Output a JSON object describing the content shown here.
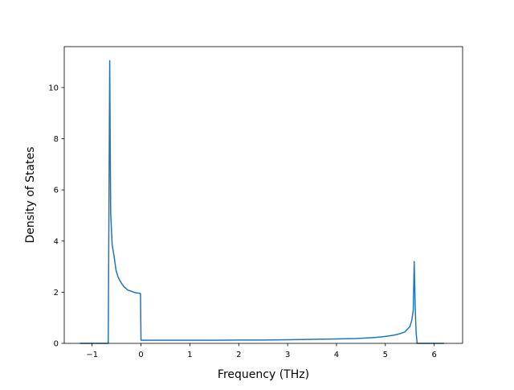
{
  "chart_data": {
    "type": "line",
    "title": "",
    "xlabel": "Frequency (THz)",
    "ylabel": "Density of States",
    "xlim": [
      -1.57,
      6.58
    ],
    "ylim": [
      0,
      11.6
    ],
    "x_ticks": [
      -1,
      0,
      1,
      2,
      3,
      4,
      5,
      6
    ],
    "x_tick_labels": [
      "−1",
      "0",
      "1",
      "2",
      "3",
      "4",
      "5",
      "6"
    ],
    "y_ticks": [
      0,
      2,
      4,
      6,
      8,
      10
    ],
    "y_tick_labels": [
      "0",
      "2",
      "4",
      "6",
      "8",
      "10"
    ],
    "grid": false,
    "legend": "none",
    "line_color": "#1f77b4",
    "series": [
      {
        "x": [
          -1.25,
          -0.7,
          -0.67,
          -0.64,
          -0.62,
          -0.59,
          -0.55,
          -0.51,
          -0.47,
          -0.43,
          -0.39,
          -0.35,
          -0.31,
          -0.27,
          -0.23,
          -0.19,
          -0.15,
          -0.11,
          -0.07,
          -0.04,
          -0.01,
          0.0,
          0.5,
          1.0,
          1.5,
          2.0,
          2.5,
          3.0,
          3.3,
          3.6,
          3.9,
          4.2,
          4.4,
          4.6,
          4.8,
          4.95,
          5.1,
          5.2,
          5.3,
          5.4,
          5.45,
          5.5,
          5.54,
          5.57,
          5.59,
          5.61,
          5.63,
          5.65,
          5.7,
          5.9,
          6.2
        ],
        "y": [
          0,
          0,
          0,
          11.05,
          5.1,
          3.85,
          3.4,
          2.85,
          2.6,
          2.45,
          2.32,
          2.22,
          2.15,
          2.08,
          2.06,
          2.03,
          2.0,
          1.98,
          1.97,
          1.96,
          1.95,
          0.12,
          0.12,
          0.12,
          0.12,
          0.13,
          0.13,
          0.14,
          0.15,
          0.16,
          0.17,
          0.18,
          0.19,
          0.21,
          0.23,
          0.26,
          0.3,
          0.33,
          0.38,
          0.45,
          0.55,
          0.65,
          0.9,
          1.3,
          3.2,
          1.4,
          0.4,
          0.0,
          0.0,
          0.0,
          0.0
        ]
      }
    ]
  }
}
